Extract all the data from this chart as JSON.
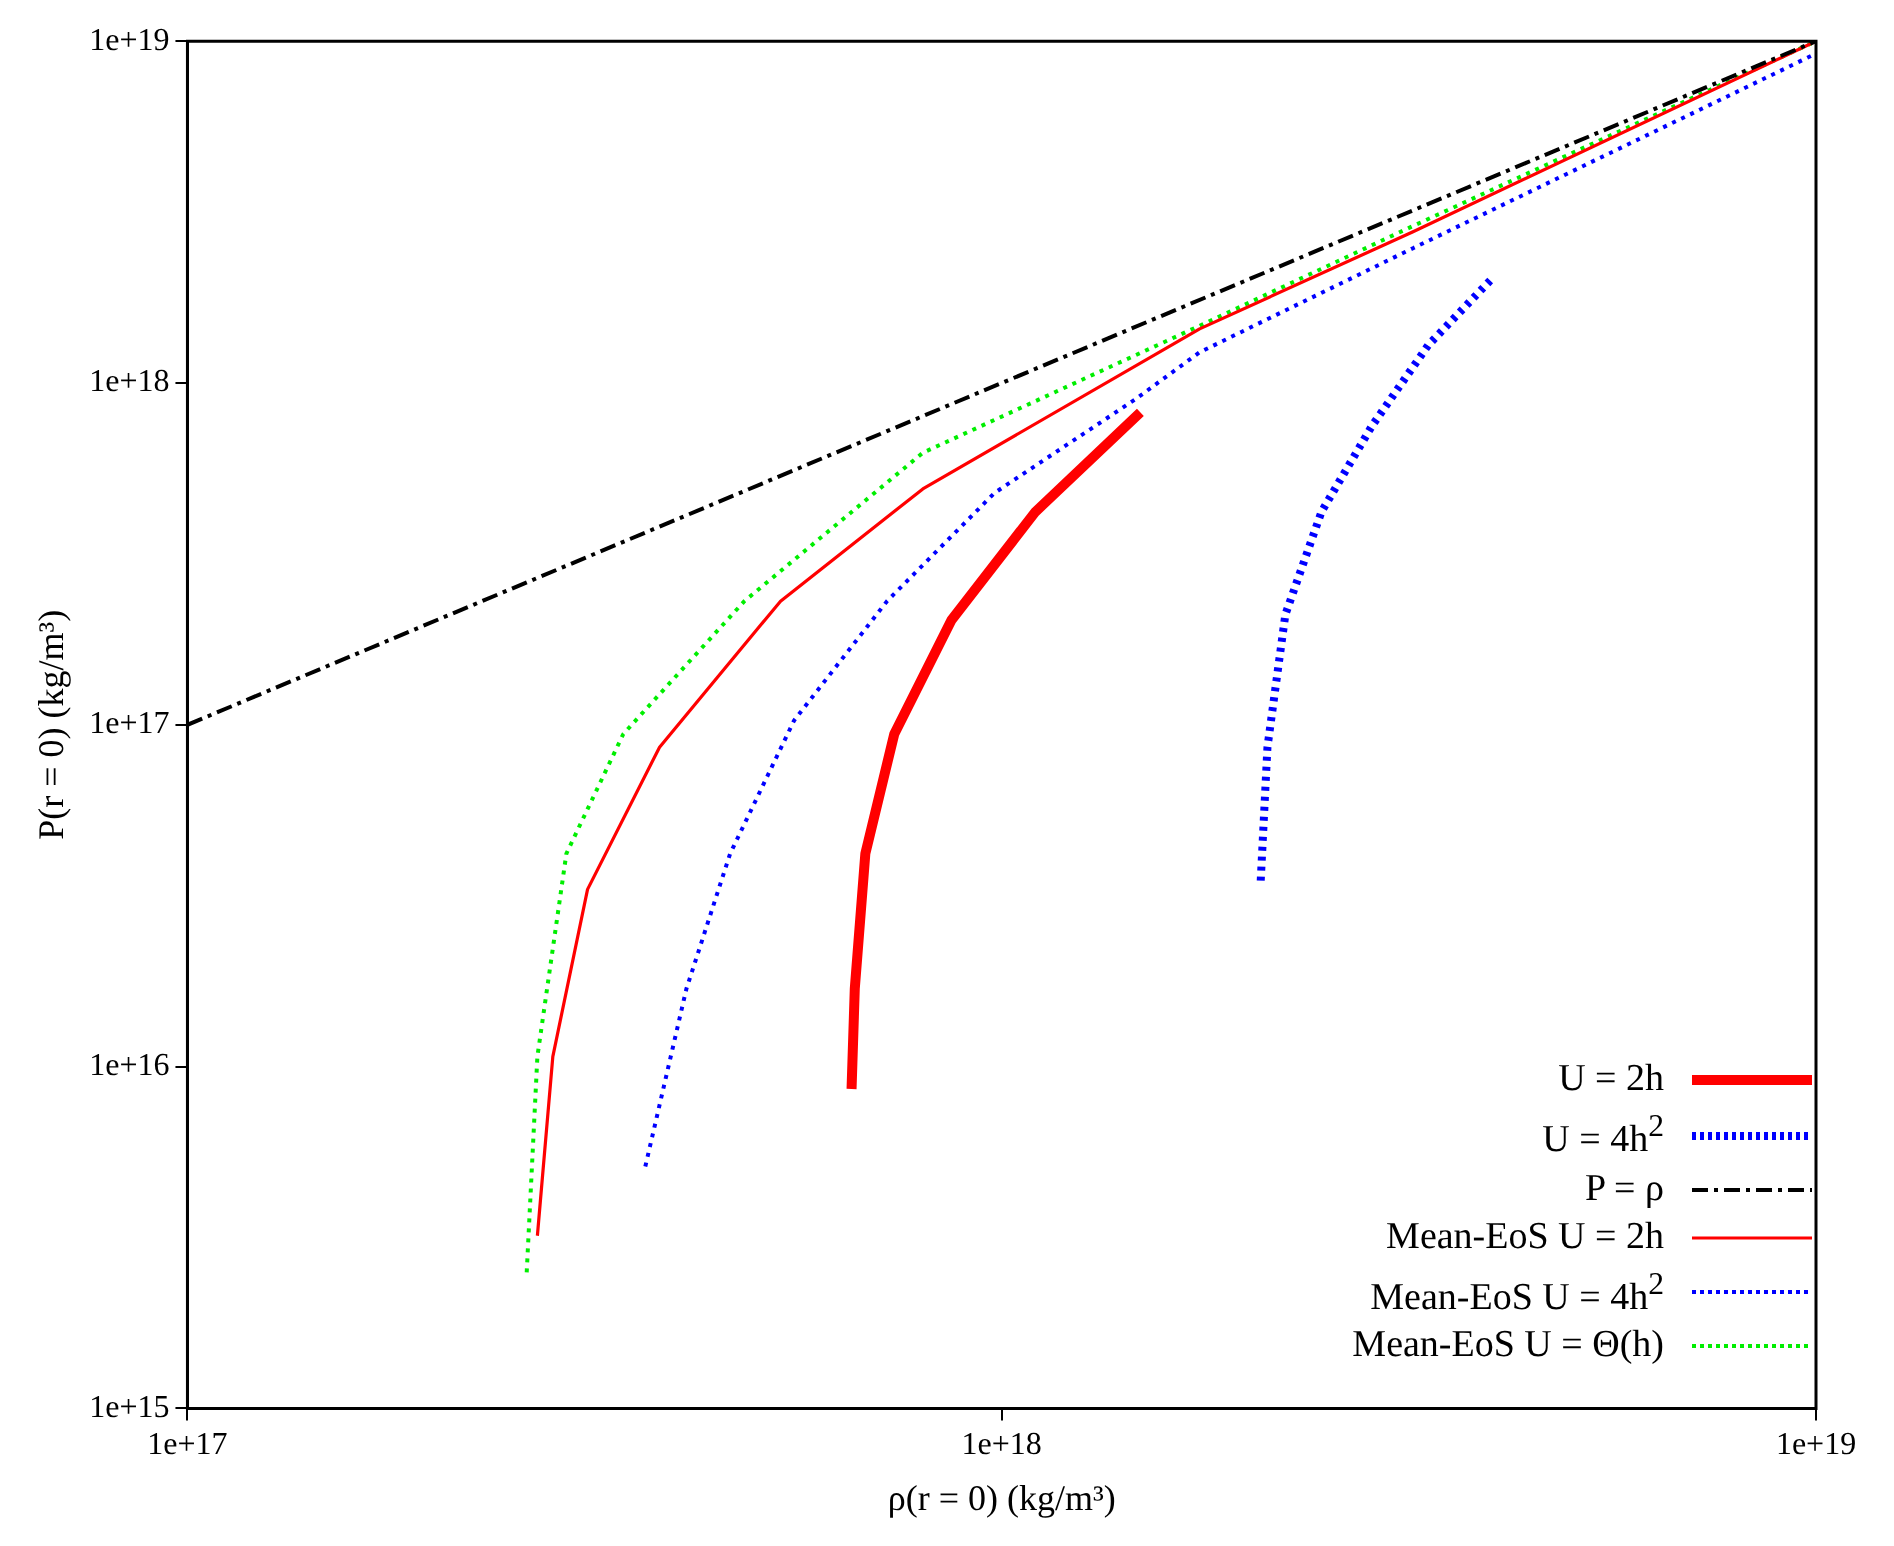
{
  "chart_data": {
    "type": "line",
    "xlabel": "ρ(r = 0) (kg/m³)",
    "ylabel": "P(r = 0) (kg/m³)",
    "log": "xy",
    "legend": "bottom right",
    "grid": false,
    "marker": "none",
    "xlim": [
      1e+17,
      1e+19
    ],
    "ylim": [
      1000000000000000.0,
      1e+19
    ],
    "xticks": [
      {
        "value": 1e+17,
        "label": "1e+17"
      },
      {
        "value": 1e+18,
        "label": "1e+18"
      },
      {
        "value": 1e+19,
        "label": "1e+19"
      }
    ],
    "yticks": [
      {
        "value": 1000000000000000.0,
        "label": "1e+15"
      },
      {
        "value": 1e+16,
        "label": "1e+16"
      },
      {
        "value": 1e+17,
        "label": "1e+17"
      },
      {
        "value": 1e+18,
        "label": "1e+18"
      },
      {
        "value": 1e+19,
        "label": "1e+19"
      }
    ],
    "series": [
      {
        "name": "U = 2h",
        "color": "#ff0000",
        "line_style": "solid",
        "x": [
          6.54e+17,
          6.6e+17,
          6.8e+17,
          7.38e+17,
          8.67e+17,
          1.1e+18,
          1.48e+18
        ],
        "values": [
          8600000000000000.0,
          1.69e+16,
          4.2e+16,
          9.4e+16,
          2.02e+17,
          4.2e+17,
          8.2e+17
        ]
      },
      {
        "name": "U = 4h$^{2}$",
        "color": "#0000ff",
        "line_style": "dotted",
        "x": [
          2.08e+18,
          2.12e+18,
          2.23e+18,
          2.47e+18,
          2.85e+18,
          3.34e+18,
          4e+18
        ],
        "values": [
          3.5e+16,
          8.6e+16,
          2.1e+17,
          4.2e+17,
          7.5e+17,
          1.29e+18,
          2.02e+18
        ]
      },
      {
        "name": "P = ρ",
        "color": "#000000",
        "line_style": "dashed",
        "x": [
          1e+17,
          1e+19
        ],
        "values": [
          1e+17,
          1e+19
        ]
      },
      {
        "name": "Mean-EoS U = 2h",
        "color": "#ff0000",
        "line_style": "solid",
        "x": [
          2.69e+17,
          2.81e+17,
          3.1e+17,
          3.8e+17,
          5.35e+17,
          8e+17,
          1.75e+18,
          3.2e+18,
          1e+19
        ],
        "values": [
          3200000000000000.0,
          1.07e+16,
          3.3e+16,
          8.6e+16,
          2.3e+17,
          4.9e+17,
          1.44e+18,
          2.77e+18,
          1e+19
        ]
      },
      {
        "name": "Mean-EoS U = 4h$^{2}$",
        "color": "#0000ff",
        "line_style": "dotted",
        "x": [
          3.65e+17,
          4.1e+17,
          4.64e+17,
          5.56e+17,
          7.23e+17,
          9.8e+17,
          1.46e+18,
          1.75e+18,
          3.2e+18,
          1e+19
        ],
        "values": [
          5100000000000000.0,
          1.69e+16,
          4.2e+16,
          1.03e+17,
          2.3e+17,
          4.77e+17,
          8.97e+17,
          1.23e+18,
          2.48e+18,
          9.2e+18
        ]
      },
      {
        "name": "Mean-EoS U = Θ(h)",
        "color": "#00ee00",
        "line_style": "dotted",
        "x": [
          2.61e+17,
          2.69e+17,
          2.92e+17,
          3.43e+17,
          4.83e+17,
          8e+17,
          1.75e+18,
          3.2e+18,
          1e+19
        ],
        "values": [
          2500000000000000.0,
          1.07e+16,
          4.2e+16,
          9.4e+16,
          2.3e+17,
          6.25e+17,
          1.47e+18,
          2.88e+18,
          1e+19
        ]
      }
    ]
  }
}
